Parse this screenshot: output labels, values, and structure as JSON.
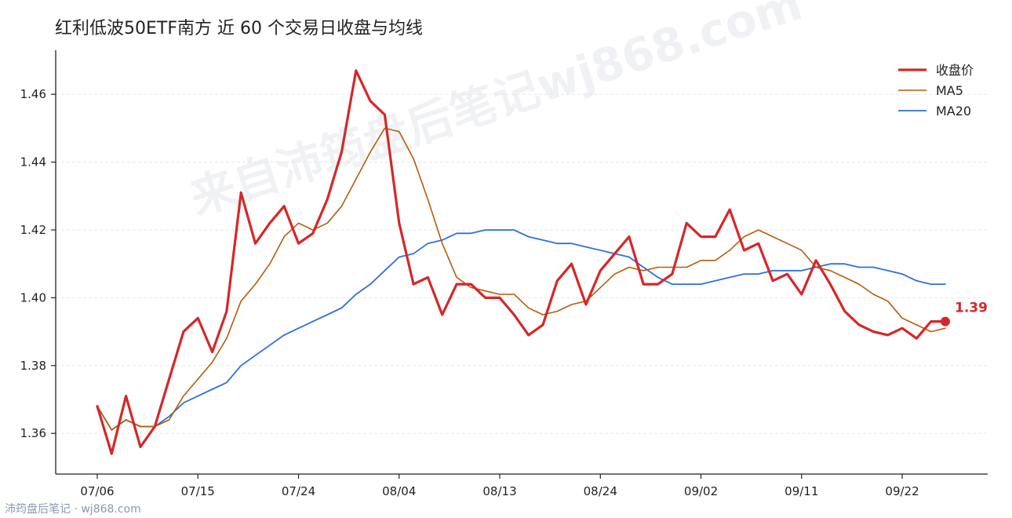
{
  "title": "红利低波50ETF南方 近 60 个交易日收盘与均线",
  "watermark": "来自沛筠盘后笔记wj868.com",
  "footer": "沛筠盘后笔记 · wj868.com",
  "colors": {
    "close": "#d62728",
    "ma5": "#b85c0a",
    "ma20": "#2f6fdc",
    "grid": "#e6e6e6",
    "axis": "#222222"
  },
  "chart_data": {
    "type": "line",
    "x": [
      "07/06",
      "07/07",
      "07/08",
      "07/09",
      "07/10",
      "07/13",
      "07/14",
      "07/15",
      "07/16",
      "07/17",
      "07/20",
      "07/21",
      "07/22",
      "07/23",
      "07/24",
      "07/27",
      "07/28",
      "07/29",
      "07/30",
      "07/31",
      "08/03",
      "08/04",
      "08/05",
      "08/06",
      "08/07",
      "08/10",
      "08/11",
      "08/12",
      "08/13",
      "08/14",
      "08/17",
      "08/18",
      "08/19",
      "08/20",
      "08/21",
      "08/24",
      "08/25",
      "08/26",
      "08/27",
      "08/28",
      "08/31",
      "09/01",
      "09/02",
      "09/03",
      "09/04",
      "09/07",
      "09/08",
      "09/09",
      "09/10",
      "09/11",
      "09/14",
      "09/15",
      "09/16",
      "09/17",
      "09/18",
      "09/21",
      "09/22",
      "09/23",
      "09/24",
      "09/25"
    ],
    "xticks": [
      "07/06",
      "07/15",
      "07/24",
      "08/04",
      "08/13",
      "08/24",
      "09/02",
      "09/11",
      "09/22"
    ],
    "yticks": [
      "1.36",
      "1.38",
      "1.40",
      "1.42",
      "1.44",
      "1.46"
    ],
    "ylim": [
      1.348,
      1.473
    ],
    "series": [
      {
        "name": "收盘价",
        "values": [
          1.368,
          1.354,
          1.371,
          1.356,
          1.362,
          1.376,
          1.39,
          1.394,
          1.384,
          1.396,
          1.431,
          1.416,
          1.422,
          1.427,
          1.416,
          1.419,
          1.429,
          1.443,
          1.467,
          1.458,
          1.454,
          1.422,
          1.404,
          1.406,
          1.395,
          1.404,
          1.404,
          1.4,
          1.4,
          1.395,
          1.389,
          1.392,
          1.405,
          1.41,
          1.398,
          1.408,
          1.413,
          1.418,
          1.404,
          1.404,
          1.407,
          1.422,
          1.418,
          1.418,
          1.426,
          1.414,
          1.416,
          1.405,
          1.407,
          1.401,
          1.411,
          1.404,
          1.396,
          1.392,
          1.39,
          1.389,
          1.391,
          1.388,
          1.393,
          1.393
        ]
      },
      {
        "name": "MA5",
        "values": [
          1.368,
          1.361,
          1.364,
          1.362,
          1.362,
          1.364,
          1.371,
          1.376,
          1.381,
          1.388,
          1.399,
          1.404,
          1.41,
          1.418,
          1.422,
          1.42,
          1.422,
          1.427,
          1.435,
          1.443,
          1.45,
          1.449,
          1.441,
          1.429,
          1.416,
          1.406,
          1.403,
          1.402,
          1.401,
          1.401,
          1.397,
          1.395,
          1.396,
          1.398,
          1.399,
          1.403,
          1.407,
          1.409,
          1.408,
          1.409,
          1.409,
          1.409,
          1.411,
          1.411,
          1.414,
          1.418,
          1.42,
          1.418,
          1.416,
          1.414,
          1.409,
          1.408,
          1.406,
          1.404,
          1.401,
          1.399,
          1.394,
          1.392,
          1.39,
          1.391
        ]
      },
      {
        "name": "MA20",
        "values": [
          1.368,
          1.361,
          1.364,
          1.362,
          1.362,
          1.365,
          1.369,
          1.371,
          1.373,
          1.375,
          1.38,
          1.383,
          1.386,
          1.389,
          1.391,
          1.393,
          1.395,
          1.397,
          1.401,
          1.404,
          1.408,
          1.412,
          1.413,
          1.416,
          1.417,
          1.419,
          1.419,
          1.42,
          1.42,
          1.42,
          1.418,
          1.417,
          1.416,
          1.416,
          1.415,
          1.414,
          1.413,
          1.412,
          1.409,
          1.406,
          1.404,
          1.404,
          1.404,
          1.405,
          1.406,
          1.407,
          1.407,
          1.408,
          1.408,
          1.408,
          1.409,
          1.41,
          1.41,
          1.409,
          1.409,
          1.408,
          1.407,
          1.405,
          1.404,
          1.404
        ]
      }
    ],
    "last_label": "1.39",
    "legend_position": "top-right",
    "grid": "horizontal-dashed"
  }
}
